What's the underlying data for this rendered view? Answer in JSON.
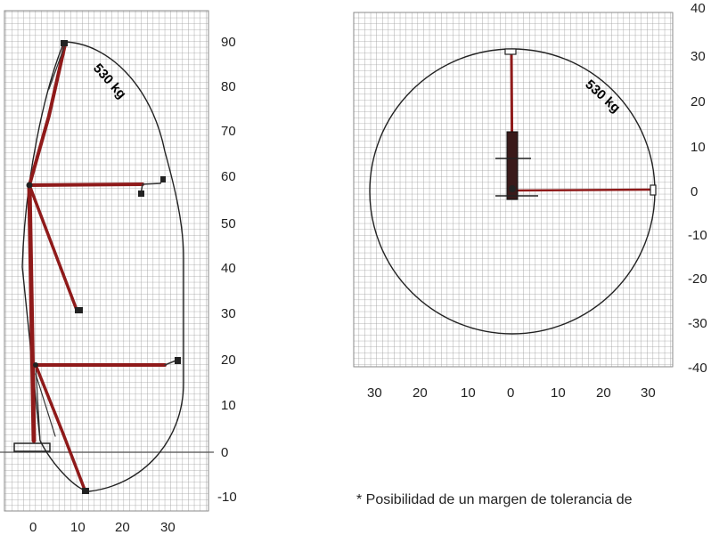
{
  "side_view": {
    "capacity_label": "530 kg",
    "y_ticks": [
      "90",
      "80",
      "70",
      "60",
      "50",
      "40",
      "30",
      "20",
      "10",
      "0",
      "-10"
    ],
    "x_ticks": [
      "0",
      "10",
      "20",
      "30"
    ]
  },
  "top_view": {
    "capacity_label": "530 kg",
    "y_ticks": [
      "40",
      "30",
      "20",
      "10",
      "0",
      "-10",
      "-20",
      "-30",
      "-40"
    ],
    "x_ticks": [
      "30",
      "20",
      "10",
      "0",
      "10",
      "20",
      "30"
    ]
  },
  "footnote": "* Posibilidad de un margen de tolerancia de"
}
